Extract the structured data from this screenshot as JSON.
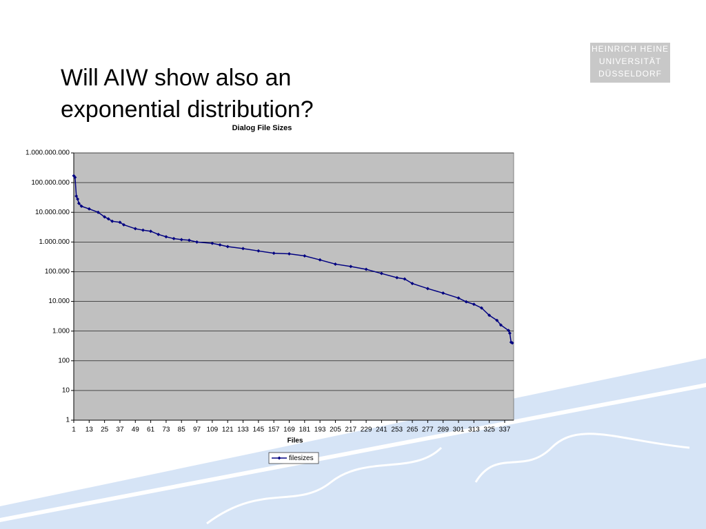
{
  "slide_title": "Will AIW show also an exponential distribution?",
  "logo": {
    "lines": [
      "HEINRICH HEINE",
      "UNIVERSITÄT",
      "DÜSSELDORF"
    ]
  },
  "chart_data": {
    "type": "line",
    "title": "Dialog File Sizes",
    "x_label": "Files",
    "log_scale": true,
    "grid": true,
    "legend": "bottom",
    "x": [
      1,
      2,
      3,
      4,
      5,
      7,
      13,
      20,
      25,
      28,
      31,
      37,
      40,
      49,
      55,
      61,
      67,
      73,
      79,
      85,
      91,
      97,
      109,
      115,
      121,
      133,
      145,
      157,
      169,
      181,
      193,
      205,
      217,
      229,
      241,
      253,
      259,
      265,
      277,
      289,
      301,
      307,
      313,
      319,
      325,
      331,
      334,
      340,
      341,
      342,
      343
    ],
    "series": [
      {
        "name": "filesizes",
        "color": "#000080",
        "values": [
          170000000,
          150000000,
          35000000,
          28000000,
          20000000,
          16000000,
          13000000,
          10000000,
          7000000,
          6000000,
          5000000,
          4600000,
          3800000,
          2800000,
          2500000,
          2300000,
          1800000,
          1500000,
          1300000,
          1200000,
          1150000,
          1000000,
          900000,
          800000,
          700000,
          600000,
          500000,
          420000,
          400000,
          340000,
          250000,
          180000,
          150000,
          120000,
          87000,
          63000,
          57000,
          40000,
          27000,
          19000,
          13000,
          9700,
          8000,
          6000,
          3400,
          2300,
          1600,
          1050,
          850,
          420,
          400
        ]
      }
    ],
    "xlim": [
      1,
      344
    ],
    "xticks": [
      1,
      13,
      25,
      37,
      49,
      61,
      73,
      85,
      97,
      109,
      121,
      133,
      145,
      157,
      169,
      181,
      193,
      205,
      217,
      229,
      241,
      253,
      265,
      277,
      289,
      301,
      313,
      325,
      337
    ],
    "ylim": [
      1,
      1000000000
    ],
    "yticks": [
      1,
      10,
      100,
      {
        "value": 1000,
        "label": "1.000"
      },
      {
        "value": 10000,
        "label": "10.000"
      },
      {
        "value": 100000,
        "label": "100.000"
      },
      {
        "value": 1000000,
        "label": "1.000.000"
      },
      {
        "value": 10000000,
        "label": "10.000.000"
      },
      {
        "value": 100000000,
        "label": "100.000.000"
      },
      {
        "value": 1000000000,
        "label": "1.000.000.000"
      }
    ]
  }
}
